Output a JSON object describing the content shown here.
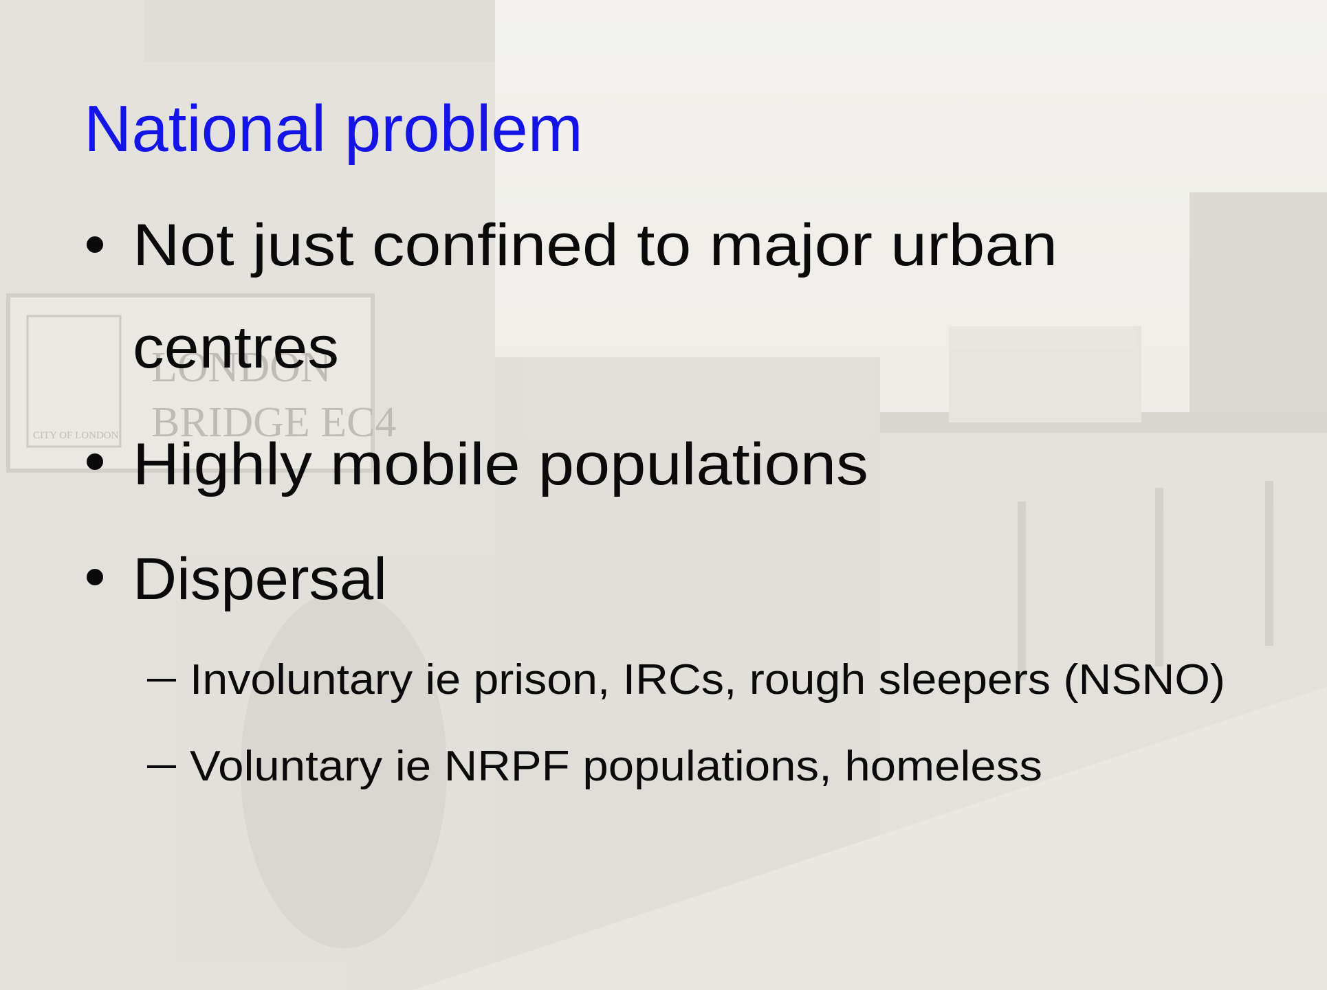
{
  "slide": {
    "title": "National problem",
    "background_photo": {
      "sign_lines": [
        "LONDON",
        "BRIDGE  EC4"
      ],
      "sign_crest": "CITY OF LONDON"
    },
    "bullets": [
      {
        "lines": [
          "Not just confined to major urban",
          "centres"
        ]
      },
      {
        "lines": [
          "Highly mobile populations"
        ]
      },
      {
        "lines": [
          "Dispersal"
        ],
        "sub_bullets": [
          "Involuntary ie prison, IRCs, rough sleepers (NSNO)",
          "Voluntary ie NRPF populations, homeless"
        ]
      }
    ]
  }
}
